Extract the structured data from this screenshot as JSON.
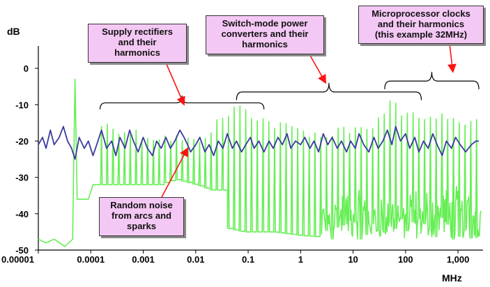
{
  "chart_data": {
    "type": "line",
    "title": "",
    "xlabel": "MHz",
    "ylabel": "dB",
    "x_scale": "log",
    "xlim": [
      1e-05,
      3000
    ],
    "ylim": [
      -50,
      5
    ],
    "x_ticks": [
      1e-05,
      0.0001,
      0.001,
      0.01,
      0.1,
      1,
      10,
      100,
      1000
    ],
    "x_tick_labels": [
      "0.00001",
      "0.0001",
      "0.001",
      "0.01",
      "0.1",
      "1",
      "10",
      "100",
      "1,000"
    ],
    "y_ticks": [
      -50,
      -40,
      -30,
      -20,
      -10,
      0
    ],
    "y_tick_labels": [
      "-50",
      "-40",
      "-30",
      "-20",
      "-10",
      "0"
    ],
    "grid": false,
    "legend": "none",
    "series": [
      {
        "color": "#66ee55",
        "style": "spiky",
        "floor": [
          [
            1e-05,
            -47
          ],
          [
            1.4e-05,
            -48
          ],
          [
            2e-05,
            -47
          ],
          [
            3.2e-05,
            -49
          ],
          [
            5e-05,
            -47
          ],
          [
            6.5e-05,
            -36
          ],
          [
            9e-05,
            -36
          ],
          [
            0.00011,
            -32
          ],
          [
            0.0002,
            -32
          ],
          [
            0.002,
            -32
          ],
          [
            0.004,
            -30.5
          ],
          [
            0.01,
            -32
          ],
          [
            0.02,
            -33.5
          ],
          [
            0.035,
            -33.5
          ],
          [
            0.04,
            -44
          ],
          [
            0.08,
            -45
          ],
          [
            0.3,
            -45
          ],
          [
            1,
            -46
          ],
          [
            10,
            -47
          ],
          [
            100,
            -47
          ],
          [
            1000,
            -46
          ],
          [
            2500,
            -46
          ]
        ],
        "spike_envelope": [
          [
            0.00016,
            -14
          ],
          [
            0.001,
            -17
          ],
          [
            0.005,
            -18
          ],
          [
            0.01,
            -19
          ],
          [
            0.06,
            -9
          ],
          [
            0.3,
            -14
          ],
          [
            3,
            -17
          ],
          [
            20,
            -15
          ],
          [
            50,
            -8
          ],
          [
            100,
            -11
          ],
          [
            300,
            -12
          ],
          [
            1000,
            -13
          ],
          [
            2500,
            -12
          ]
        ],
        "spike_step_decades": 0.11,
        "primary_spike": {
          "x": 5e-05,
          "peak": -3,
          "base": -47
        },
        "noise_band": {
          "from": 2,
          "to": 2500,
          "low": -47,
          "high": -30
        }
      },
      {
        "color": "#3a3a9e",
        "style": "noisy",
        "values": [
          [
            1e-05,
            -21
          ],
          [
            1.2e-05,
            -19
          ],
          [
            1.4e-05,
            -22
          ],
          [
            1.7e-05,
            -17
          ],
          [
            2e-05,
            -21
          ],
          [
            2.5e-05,
            -19
          ],
          [
            3e-05,
            -16
          ],
          [
            3.6e-05,
            -20
          ],
          [
            4.3e-05,
            -22
          ],
          [
            5e-05,
            -25
          ],
          [
            6e-05,
            -19
          ],
          [
            7.5e-05,
            -22
          ],
          [
            9e-05,
            -20
          ],
          [
            0.00011,
            -24
          ],
          [
            0.00013,
            -21
          ],
          [
            0.00016,
            -17
          ],
          [
            0.0002,
            -22
          ],
          [
            0.00025,
            -20
          ],
          [
            0.0003,
            -24
          ],
          [
            0.00036,
            -19
          ],
          [
            0.00045,
            -22
          ],
          [
            0.00055,
            -17
          ],
          [
            0.00065,
            -20
          ],
          [
            0.0008,
            -23
          ],
          [
            0.001,
            -19
          ],
          [
            0.0012,
            -22
          ],
          [
            0.0015,
            -24
          ],
          [
            0.0018,
            -20
          ],
          [
            0.0022,
            -22
          ],
          [
            0.0027,
            -19
          ],
          [
            0.0033,
            -22
          ],
          [
            0.004,
            -20
          ],
          [
            0.005,
            -17
          ],
          [
            0.006,
            -19
          ],
          [
            0.007,
            -21
          ],
          [
            0.008,
            -23
          ],
          [
            0.01,
            -21
          ],
          [
            0.012,
            -19
          ],
          [
            0.015,
            -23
          ],
          [
            0.018,
            -21
          ],
          [
            0.022,
            -24
          ],
          [
            0.027,
            -20
          ],
          [
            0.033,
            -22
          ],
          [
            0.04,
            -18
          ],
          [
            0.05,
            -22
          ],
          [
            0.06,
            -20
          ],
          [
            0.075,
            -23
          ],
          [
            0.09,
            -21
          ],
          [
            0.11,
            -19
          ],
          [
            0.13,
            -22
          ],
          [
            0.16,
            -20
          ],
          [
            0.2,
            -23
          ],
          [
            0.25,
            -20
          ],
          [
            0.3,
            -22
          ],
          [
            0.37,
            -19
          ],
          [
            0.45,
            -21
          ],
          [
            0.55,
            -18
          ],
          [
            0.65,
            -22
          ],
          [
            0.8,
            -20
          ],
          [
            1,
            -21
          ],
          [
            1.2,
            -19
          ],
          [
            1.5,
            -22
          ],
          [
            1.8,
            -20
          ],
          [
            2.2,
            -23
          ],
          [
            2.7,
            -18
          ],
          [
            3.3,
            -21
          ],
          [
            4,
            -19
          ],
          [
            5,
            -22
          ],
          [
            6,
            -20
          ],
          [
            7.5,
            -23
          ],
          [
            9,
            -20
          ],
          [
            11,
            -22
          ],
          [
            13,
            -18
          ],
          [
            16,
            -21
          ],
          [
            20,
            -23
          ],
          [
            25,
            -19
          ],
          [
            30,
            -22
          ],
          [
            37,
            -20
          ],
          [
            45,
            -17
          ],
          [
            55,
            -21
          ],
          [
            65,
            -16
          ],
          [
            80,
            -20
          ],
          [
            100,
            -18
          ],
          [
            120,
            -22
          ],
          [
            150,
            -19
          ],
          [
            180,
            -23
          ],
          [
            220,
            -20
          ],
          [
            270,
            -22
          ],
          [
            330,
            -18
          ],
          [
            400,
            -21
          ],
          [
            500,
            -24
          ],
          [
            600,
            -20
          ],
          [
            750,
            -22
          ],
          [
            900,
            -19
          ],
          [
            1100,
            -21
          ],
          [
            1400,
            -23
          ],
          [
            1800,
            -21
          ],
          [
            2200,
            -20
          ],
          [
            2500,
            -20
          ]
        ]
      }
    ],
    "annotations": [
      {
        "text_lines": [
          "Supply rectifiers",
          "and their",
          "harmonics"
        ],
        "brace_from": 0.00015,
        "brace_to": 0.2,
        "brace_y": -9.5,
        "brace_tip_y": -7.5,
        "arrow_to": [
          0.006,
          -10
        ]
      },
      {
        "text_lines": [
          "Switch-mode power",
          "converters and their",
          "harmonics"
        ],
        "brace_from": 0.06,
        "brace_to": 200,
        "brace_y": -6.5,
        "brace_tip_y": -4,
        "arrow_to": [
          3,
          -4
        ]
      },
      {
        "text_lines": [
          "Microprocessor clocks",
          "and their harmonics",
          "(this example 32MHz)"
        ],
        "brace_from": 40,
        "brace_to": 2500,
        "brace_y": -3.5,
        "brace_tip_y": -1,
        "arrow_to": [
          800,
          -1
        ]
      },
      {
        "text_lines": [
          "Random noise",
          "from arcs and",
          "sparks"
        ],
        "arrow_to": [
          0.007,
          -22
        ]
      }
    ]
  }
}
